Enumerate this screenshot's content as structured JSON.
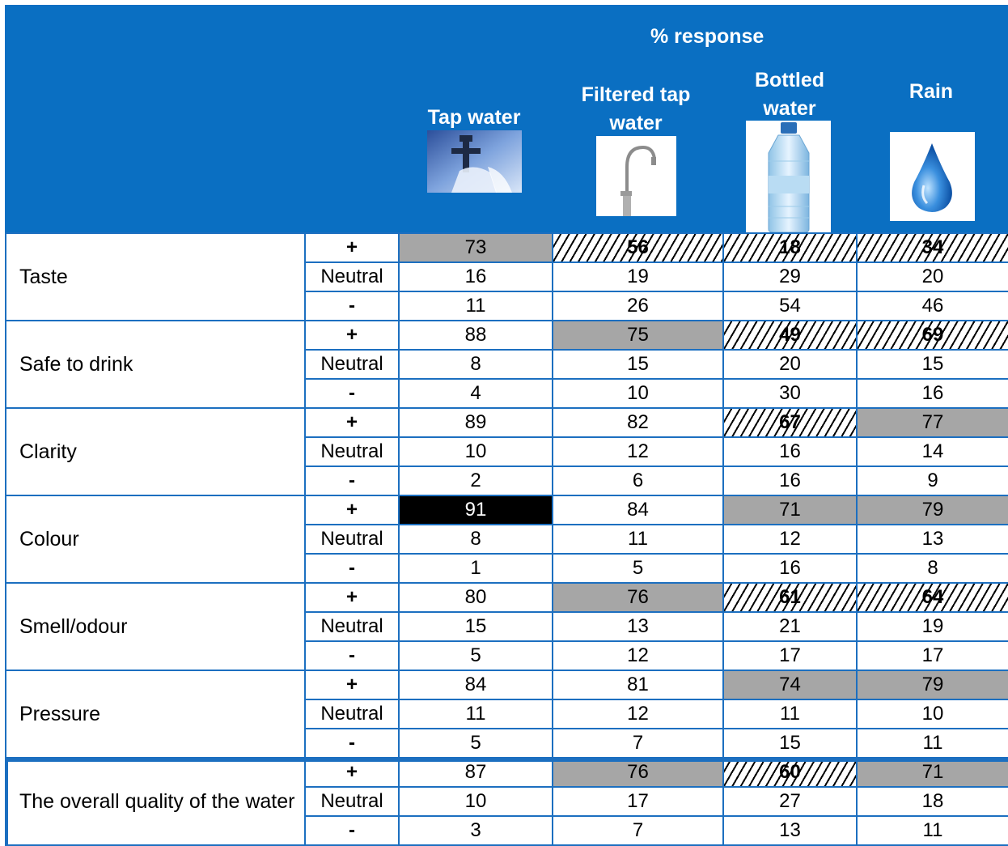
{
  "header": {
    "span_title": "% response",
    "columns": [
      {
        "label": "Tap water",
        "icon": "tap-icon"
      },
      {
        "label": "Filtered tap water",
        "icon": "filter-tap-icon"
      },
      {
        "label": "Bottled water",
        "icon": "bottle-icon"
      },
      {
        "label": "Rain",
        "icon": "raindrop-icon"
      }
    ],
    "colors": {
      "band": "#0a6fc2",
      "grid": "#1c6fc0",
      "plus": "#1aa33a",
      "minus": "#e0261d",
      "gray": "#a6a6a6"
    }
  },
  "rows": [
    {
      "label": "Taste",
      "responses": [
        {
          "sign": "+",
          "values": [
            "73",
            "56",
            "18",
            "34"
          ],
          "styles": [
            "gray",
            "hatch",
            "hatch",
            "hatch"
          ]
        },
        {
          "sign": "Neutral",
          "values": [
            "16",
            "19",
            "29",
            "20"
          ],
          "styles": [
            "",
            "",
            "",
            ""
          ]
        },
        {
          "sign": "-",
          "values": [
            "11",
            "26",
            "54",
            "46"
          ],
          "styles": [
            "",
            "",
            "",
            ""
          ]
        }
      ]
    },
    {
      "label": "Safe to drink",
      "responses": [
        {
          "sign": "+",
          "values": [
            "88",
            "75",
            "49",
            "69"
          ],
          "styles": [
            "",
            "gray",
            "hatch",
            "hatch"
          ]
        },
        {
          "sign": "Neutral",
          "values": [
            "8",
            "15",
            "20",
            "15"
          ],
          "styles": [
            "",
            "",
            "",
            ""
          ]
        },
        {
          "sign": "-",
          "values": [
            "4",
            "10",
            "30",
            "16"
          ],
          "styles": [
            "",
            "",
            "",
            ""
          ]
        }
      ]
    },
    {
      "label": "Clarity",
      "responses": [
        {
          "sign": "+",
          "values": [
            "89",
            "82",
            "67",
            "77"
          ],
          "styles": [
            "",
            "",
            "hatch",
            "gray"
          ]
        },
        {
          "sign": "Neutral",
          "values": [
            "10",
            "12",
            "16",
            "14"
          ],
          "styles": [
            "",
            "",
            "",
            ""
          ]
        },
        {
          "sign": "-",
          "values": [
            "2",
            "6",
            "16",
            "9"
          ],
          "styles": [
            "",
            "",
            "",
            ""
          ]
        }
      ]
    },
    {
      "label": "Colour",
      "responses": [
        {
          "sign": "+",
          "values": [
            "91",
            "84",
            "71",
            "79"
          ],
          "styles": [
            "black",
            "",
            "gray",
            "gray"
          ]
        },
        {
          "sign": "Neutral",
          "values": [
            "8",
            "11",
            "12",
            "13"
          ],
          "styles": [
            "",
            "",
            "",
            ""
          ]
        },
        {
          "sign": "-",
          "values": [
            "1",
            "5",
            "16",
            "8"
          ],
          "styles": [
            "",
            "",
            "",
            ""
          ]
        }
      ]
    },
    {
      "label": "Smell/odour",
      "responses": [
        {
          "sign": "+",
          "values": [
            "80",
            "76",
            "61",
            "64"
          ],
          "styles": [
            "",
            "gray",
            "hatch",
            "hatch"
          ]
        },
        {
          "sign": "Neutral",
          "values": [
            "15",
            "13",
            "21",
            "19"
          ],
          "styles": [
            "",
            "",
            "",
            ""
          ]
        },
        {
          "sign": "-",
          "values": [
            "5",
            "12",
            "17",
            "17"
          ],
          "styles": [
            "",
            "",
            "",
            ""
          ]
        }
      ]
    },
    {
      "label": "Pressure",
      "responses": [
        {
          "sign": "+",
          "values": [
            "84",
            "81",
            "74",
            "79"
          ],
          "styles": [
            "",
            "",
            "gray",
            "gray"
          ]
        },
        {
          "sign": "Neutral",
          "values": [
            "11",
            "12",
            "11",
            "10"
          ],
          "styles": [
            "",
            "",
            "",
            ""
          ]
        },
        {
          "sign": "-",
          "values": [
            "5",
            "7",
            "15",
            "11"
          ],
          "styles": [
            "",
            "",
            "",
            ""
          ]
        }
      ]
    },
    {
      "label": "The overall quality of the water",
      "responses": [
        {
          "sign": "+",
          "values": [
            "87",
            "76",
            "60",
            "71"
          ],
          "styles": [
            "",
            "gray",
            "hatch",
            "gray"
          ]
        },
        {
          "sign": "Neutral",
          "values": [
            "10",
            "17",
            "27",
            "18"
          ],
          "styles": [
            "",
            "",
            "",
            ""
          ]
        },
        {
          "sign": "-",
          "values": [
            "3",
            "7",
            "13",
            "11"
          ],
          "styles": [
            "",
            "",
            "",
            ""
          ]
        }
      ]
    }
  ]
}
